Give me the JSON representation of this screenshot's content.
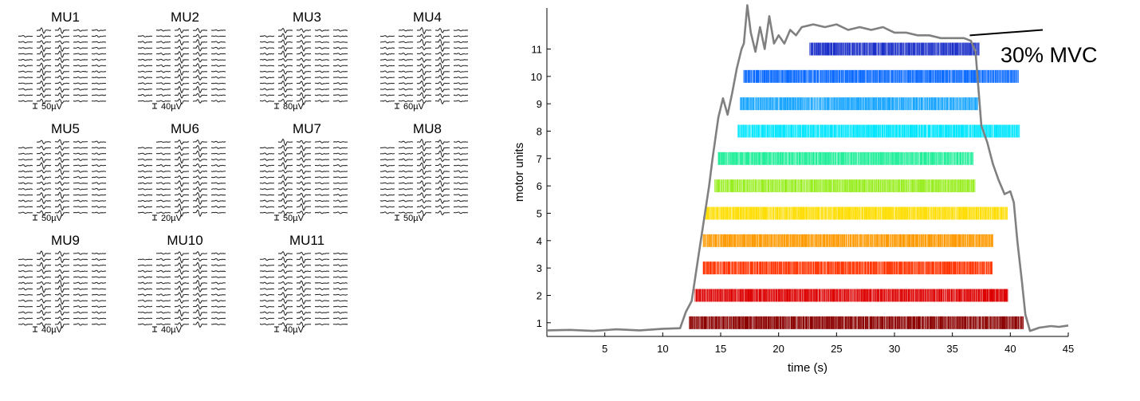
{
  "chart_data": [
    {
      "type": "waveform-grid",
      "units": [
        {
          "label": "MU1",
          "scale": "50µV"
        },
        {
          "label": "MU2",
          "scale": "40µV"
        },
        {
          "label": "MU3",
          "scale": "80µV"
        },
        {
          "label": "MU4",
          "scale": "60µV"
        },
        {
          "label": "MU5",
          "scale": "50µV"
        },
        {
          "label": "MU6",
          "scale": "20µV"
        },
        {
          "label": "MU7",
          "scale": "50µV"
        },
        {
          "label": "MU8",
          "scale": "50µV"
        },
        {
          "label": "MU9",
          "scale": "40µV"
        },
        {
          "label": "MU10",
          "scale": "40µV"
        },
        {
          "label": "MU11",
          "scale": "40µV"
        }
      ],
      "grid_columns": 5,
      "grid_rows": 13
    },
    {
      "type": "raster",
      "xlabel": "time (s)",
      "ylabel": "motor units",
      "xlim": [
        0,
        45
      ],
      "ylim": [
        0.5,
        12.5
      ],
      "xticks": [
        5,
        10,
        15,
        20,
        25,
        30,
        35,
        40,
        45
      ],
      "yticks": [
        1,
        2,
        3,
        4,
        5,
        6,
        7,
        8,
        9,
        10,
        11
      ],
      "annotation": "30% MVC",
      "force_color": "#808080",
      "units": [
        {
          "unit": 1,
          "color": "#8b0000",
          "start": 12.3,
          "end": 41.2
        },
        {
          "unit": 2,
          "color": "#dd0000",
          "start": 12.8,
          "end": 39.8
        },
        {
          "unit": 3,
          "color": "#ff3300",
          "start": 13.5,
          "end": 38.5
        },
        {
          "unit": 4,
          "color": "#ff9900",
          "start": 13.5,
          "end": 38.5
        },
        {
          "unit": 5,
          "color": "#ffdd00",
          "start": 13.7,
          "end": 39.8
        },
        {
          "unit": 6,
          "color": "#99ee22",
          "start": 14.5,
          "end": 37.0
        },
        {
          "unit": 7,
          "color": "#22ee99",
          "start": 14.8,
          "end": 36.8
        },
        {
          "unit": 8,
          "color": "#00e5ff",
          "start": 16.5,
          "end": 40.8
        },
        {
          "unit": 9,
          "color": "#1aa6ff",
          "start": 16.7,
          "end": 37.2
        },
        {
          "unit": 10,
          "color": "#0a6aff",
          "start": 17.0,
          "end": 40.7
        },
        {
          "unit": 11,
          "color": "#1a2ec8",
          "start": 22.7,
          "end": 37.3
        }
      ],
      "force_curve": [
        [
          0,
          0.72
        ],
        [
          2,
          0.74
        ],
        [
          4,
          0.7
        ],
        [
          6,
          0.76
        ],
        [
          8,
          0.72
        ],
        [
          10,
          0.78
        ],
        [
          11.5,
          0.8
        ],
        [
          12.0,
          1.4
        ],
        [
          12.5,
          1.8
        ],
        [
          13.0,
          3.2
        ],
        [
          13.5,
          4.6
        ],
        [
          14.0,
          6.0
        ],
        [
          14.3,
          7.0
        ],
        [
          14.8,
          8.5
        ],
        [
          15.2,
          9.2
        ],
        [
          15.6,
          8.6
        ],
        [
          16.0,
          9.4
        ],
        [
          16.4,
          10.3
        ],
        [
          16.8,
          11.0
        ],
        [
          17.0,
          11.2
        ],
        [
          17.3,
          12.6
        ],
        [
          17.6,
          11.6
        ],
        [
          18.0,
          10.9
        ],
        [
          18.4,
          11.8
        ],
        [
          18.8,
          11.0
        ],
        [
          19.2,
          12.2
        ],
        [
          19.6,
          11.2
        ],
        [
          20.0,
          11.5
        ],
        [
          20.5,
          11.2
        ],
        [
          21.0,
          11.7
        ],
        [
          21.5,
          11.5
        ],
        [
          22.0,
          11.8
        ],
        [
          23.0,
          11.9
        ],
        [
          24.0,
          11.8
        ],
        [
          25.0,
          11.9
        ],
        [
          26.0,
          11.7
        ],
        [
          27.0,
          11.8
        ],
        [
          28.0,
          11.7
        ],
        [
          29.0,
          11.8
        ],
        [
          30.0,
          11.6
        ],
        [
          31.0,
          11.6
        ],
        [
          32.0,
          11.5
        ],
        [
          33.0,
          11.5
        ],
        [
          34.0,
          11.4
        ],
        [
          35.0,
          11.4
        ],
        [
          36.0,
          11.4
        ],
        [
          36.6,
          11.3
        ],
        [
          37.0,
          10.9
        ],
        [
          37.5,
          8.2
        ],
        [
          38.0,
          7.6
        ],
        [
          38.5,
          6.8
        ],
        [
          39.0,
          6.2
        ],
        [
          39.5,
          5.7
        ],
        [
          40.0,
          5.8
        ],
        [
          40.3,
          5.4
        ],
        [
          40.6,
          4.0
        ],
        [
          41.0,
          2.5
        ],
        [
          41.3,
          1.3
        ],
        [
          41.7,
          0.7
        ],
        [
          42.5,
          0.82
        ],
        [
          43.5,
          0.88
        ],
        [
          44.2,
          0.85
        ],
        [
          45.0,
          0.9
        ]
      ]
    }
  ]
}
